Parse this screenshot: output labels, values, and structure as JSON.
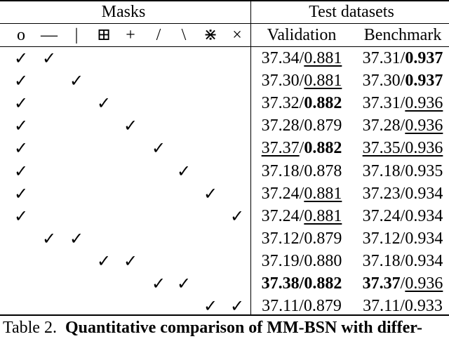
{
  "table": {
    "group_headers": {
      "masks": "Masks",
      "test_datasets": "Test datasets"
    },
    "mask_symbols": [
      "o",
      "—",
      "|",
      "⊞",
      "+",
      "/",
      "\\",
      "⋇",
      "×"
    ],
    "dataset_headers": [
      "Validation",
      "Benchmark"
    ],
    "rows": [
      {
        "checks": [
          1,
          1,
          0,
          0,
          0,
          0,
          0,
          0,
          0
        ],
        "val": [
          {
            "t": "37.34",
            "b": false,
            "u": false
          },
          {
            "t": "/",
            "b": false,
            "u": false
          },
          {
            "t": "0.881",
            "b": false,
            "u": true
          }
        ],
        "bench": [
          {
            "t": "37.31",
            "b": false,
            "u": false
          },
          {
            "t": "/",
            "b": false,
            "u": false
          },
          {
            "t": "0.937",
            "b": true,
            "u": false
          }
        ]
      },
      {
        "checks": [
          1,
          0,
          1,
          0,
          0,
          0,
          0,
          0,
          0
        ],
        "val": [
          {
            "t": "37.30",
            "b": false,
            "u": false
          },
          {
            "t": "/",
            "b": false,
            "u": false
          },
          {
            "t": "0.881",
            "b": false,
            "u": true
          }
        ],
        "bench": [
          {
            "t": "37.30",
            "b": false,
            "u": false
          },
          {
            "t": "/",
            "b": false,
            "u": false
          },
          {
            "t": "0.937",
            "b": true,
            "u": false
          }
        ]
      },
      {
        "checks": [
          1,
          0,
          0,
          1,
          0,
          0,
          0,
          0,
          0
        ],
        "val": [
          {
            "t": "37.32",
            "b": false,
            "u": false
          },
          {
            "t": "/",
            "b": false,
            "u": false
          },
          {
            "t": "0.882",
            "b": true,
            "u": false
          }
        ],
        "bench": [
          {
            "t": "37.31",
            "b": false,
            "u": false
          },
          {
            "t": "/",
            "b": false,
            "u": false
          },
          {
            "t": "0.936",
            "b": false,
            "u": true
          }
        ]
      },
      {
        "checks": [
          1,
          0,
          0,
          0,
          1,
          0,
          0,
          0,
          0
        ],
        "val": [
          {
            "t": "37.28/0.879",
            "b": false,
            "u": false
          }
        ],
        "bench": [
          {
            "t": "37.28",
            "b": false,
            "u": false
          },
          {
            "t": "/",
            "b": false,
            "u": false
          },
          {
            "t": "0.936",
            "b": false,
            "u": true
          }
        ]
      },
      {
        "checks": [
          1,
          0,
          0,
          0,
          0,
          1,
          0,
          0,
          0
        ],
        "val": [
          {
            "t": "37.37",
            "b": false,
            "u": true
          },
          {
            "t": "/",
            "b": false,
            "u": false
          },
          {
            "t": "0.882",
            "b": true,
            "u": false
          }
        ],
        "bench": [
          {
            "t": "37.35/0.936",
            "b": false,
            "u": true
          }
        ]
      },
      {
        "checks": [
          1,
          0,
          0,
          0,
          0,
          0,
          1,
          0,
          0
        ],
        "val": [
          {
            "t": "37.18/0.878",
            "b": false,
            "u": false
          }
        ],
        "bench": [
          {
            "t": "37.18/0.935",
            "b": false,
            "u": false
          }
        ]
      },
      {
        "checks": [
          1,
          0,
          0,
          0,
          0,
          0,
          0,
          1,
          0
        ],
        "val": [
          {
            "t": "37.24",
            "b": false,
            "u": false
          },
          {
            "t": "/",
            "b": false,
            "u": false
          },
          {
            "t": "0.881",
            "b": false,
            "u": true
          }
        ],
        "bench": [
          {
            "t": "37.23/0.934",
            "b": false,
            "u": false
          }
        ]
      },
      {
        "checks": [
          1,
          0,
          0,
          0,
          0,
          0,
          0,
          0,
          1
        ],
        "val": [
          {
            "t": "37.24",
            "b": false,
            "u": false
          },
          {
            "t": "/",
            "b": false,
            "u": false
          },
          {
            "t": "0.881",
            "b": false,
            "u": true
          }
        ],
        "bench": [
          {
            "t": "37.24/0.934",
            "b": false,
            "u": false
          }
        ]
      },
      {
        "checks": [
          0,
          1,
          1,
          0,
          0,
          0,
          0,
          0,
          0
        ],
        "val": [
          {
            "t": "37.12/0.879",
            "b": false,
            "u": false
          }
        ],
        "bench": [
          {
            "t": "37.12/0.934",
            "b": false,
            "u": false
          }
        ]
      },
      {
        "checks": [
          0,
          0,
          0,
          1,
          1,
          0,
          0,
          0,
          0
        ],
        "val": [
          {
            "t": "37.19/0.880",
            "b": false,
            "u": false
          }
        ],
        "bench": [
          {
            "t": "37.18/0.934",
            "b": false,
            "u": false
          }
        ]
      },
      {
        "checks": [
          0,
          0,
          0,
          0,
          0,
          1,
          1,
          0,
          0
        ],
        "val": [
          {
            "t": "37.38/0.882",
            "b": true,
            "u": false
          }
        ],
        "bench": [
          {
            "t": "37.37",
            "b": true,
            "u": false
          },
          {
            "t": "/",
            "b": false,
            "u": false
          },
          {
            "t": "0.936",
            "b": false,
            "u": true
          }
        ]
      },
      {
        "checks": [
          0,
          0,
          0,
          0,
          0,
          0,
          0,
          1,
          1
        ],
        "val": [
          {
            "t": "37.11/0.879",
            "b": false,
            "u": false
          }
        ],
        "bench": [
          {
            "t": "37.11/0.933",
            "b": false,
            "u": false
          }
        ]
      }
    ],
    "check_glyph": "✓"
  },
  "caption": {
    "label": "Table 2.",
    "text": "Quantitative comparison of MM-BSN with differ-"
  }
}
